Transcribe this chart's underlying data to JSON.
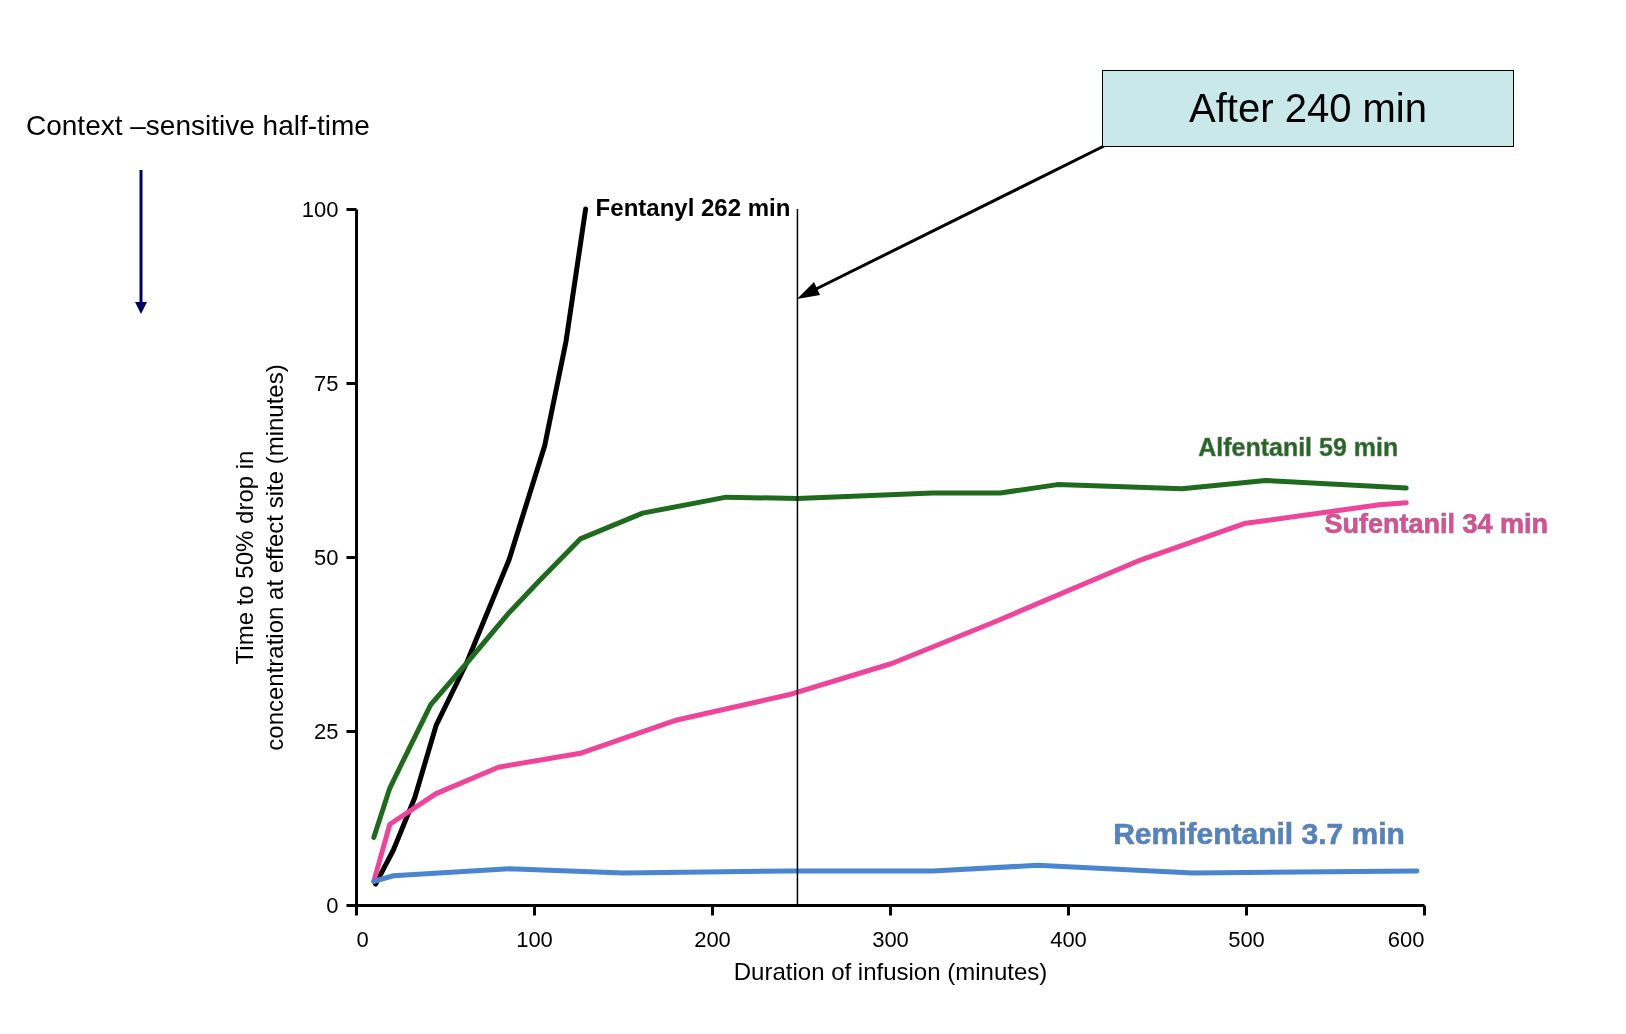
{
  "chart_data": {
    "type": "line",
    "title": "Context –sensitive half-time",
    "xlabel": "Duration of infusion (minutes)",
    "ylabel": "Time to 50% drop in\nconcentration at effect site (minutes)",
    "xlim": [
      0,
      600
    ],
    "xticks": [
      0,
      100,
      200,
      300,
      400,
      500,
      600
    ],
    "ylim": [
      0,
      100
    ],
    "yticks": [
      0,
      25,
      50,
      75,
      100
    ],
    "grid": false,
    "legend": false,
    "series": [
      {
        "name": "Fentanyl 262 min",
        "color": "#000000",
        "x": [
          11,
          21,
          33,
          45,
          62,
          86,
          106,
          118,
          129
        ],
        "values": [
          3,
          7.9,
          15.4,
          25.8,
          34.7,
          49.6,
          66,
          81,
          100
        ]
      },
      {
        "name": "Alfentanil 59 min",
        "color": "#1e6b1e",
        "x": [
          10,
          19,
          27,
          42,
          62,
          86,
          103,
          126,
          161,
          208,
          248,
          324,
          362,
          394,
          464,
          511,
          590
        ],
        "values": [
          9.7,
          16.8,
          21,
          28.8,
          34.7,
          42,
          46.6,
          52.6,
          56.3,
          58.6,
          58.4,
          59.2,
          59.2,
          60.4,
          59.8,
          61,
          59.9
        ]
      },
      {
        "name": "Sufentanil 34 min",
        "color": "#f0449b",
        "x": [
          10,
          19,
          45,
          80,
          126,
          179,
          243,
          301,
          359,
          441,
          499,
          575,
          590
        ],
        "values": [
          3.4,
          11.6,
          16,
          19.8,
          21.8,
          26.5,
          30.2,
          34.7,
          40.7,
          49.6,
          54.8,
          57.5,
          57.8
        ]
      },
      {
        "name": "Remifentanil 3.7 min",
        "color": "#4a86d0",
        "x": [
          10,
          21,
          86,
          150,
          243,
          324,
          383,
          470,
          596
        ],
        "values": [
          3.4,
          4.2,
          5.2,
          4.6,
          4.9,
          4.9,
          5.7,
          4.6,
          4.9
        ]
      }
    ],
    "ref_lines": [
      {
        "axis": "x",
        "value": 248,
        "color": "#000000"
      }
    ],
    "annotations": [
      "After 240 min"
    ]
  }
}
